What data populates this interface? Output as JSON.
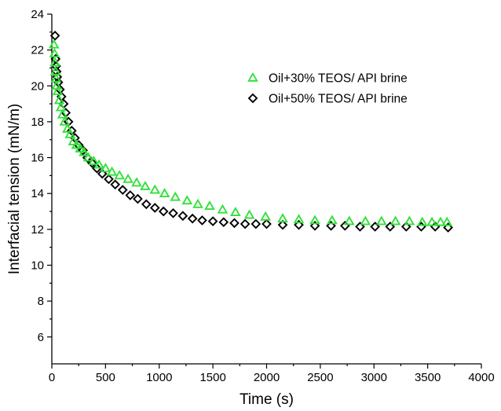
{
  "chart_data": {
    "type": "scatter",
    "title": "",
    "xlabel": "Time (s)",
    "ylabel": "Interfacial tension (mN/m)",
    "xlim": [
      0,
      4000
    ],
    "ylim": [
      4.5,
      24
    ],
    "x_ticks": [
      0,
      500,
      1000,
      1500,
      2000,
      2500,
      3000,
      3500,
      4000
    ],
    "x_tick_labels": [
      "0",
      "500",
      "1000",
      "1500",
      "2000",
      "2500",
      "3000",
      "3500",
      "4000"
    ],
    "y_ticks": [
      6,
      8,
      10,
      12,
      14,
      16,
      18,
      20,
      22,
      24
    ],
    "y_tick_labels": [
      "6",
      "8",
      "10",
      "12",
      "14",
      "16",
      "18",
      "20",
      "22",
      "24"
    ],
    "grid": false,
    "legend_position": "top-right",
    "series": [
      {
        "name": "Oil+30% TEOS/ API brine",
        "marker": "triangle",
        "color": "#33e03a",
        "points": [
          [
            20,
            22.3
          ],
          [
            25,
            21.8
          ],
          [
            30,
            21.3
          ],
          [
            35,
            20.8
          ],
          [
            40,
            20.4
          ],
          [
            45,
            20.0
          ],
          [
            55,
            19.7
          ],
          [
            70,
            19.2
          ],
          [
            85,
            18.8
          ],
          [
            100,
            18.4
          ],
          [
            120,
            18.0
          ],
          [
            145,
            17.6
          ],
          [
            170,
            17.3
          ],
          [
            200,
            16.9
          ],
          [
            230,
            16.7
          ],
          [
            265,
            16.5
          ],
          [
            300,
            16.3
          ],
          [
            340,
            16.0
          ],
          [
            390,
            15.8
          ],
          [
            440,
            15.6
          ],
          [
            500,
            15.4
          ],
          [
            560,
            15.2
          ],
          [
            630,
            15.0
          ],
          [
            710,
            14.8
          ],
          [
            790,
            14.6
          ],
          [
            870,
            14.4
          ],
          [
            960,
            14.2
          ],
          [
            1050,
            14.0
          ],
          [
            1150,
            13.8
          ],
          [
            1260,
            13.6
          ],
          [
            1360,
            13.4
          ],
          [
            1470,
            13.3
          ],
          [
            1590,
            13.1
          ],
          [
            1710,
            12.95
          ],
          [
            1840,
            12.8
          ],
          [
            1990,
            12.7
          ],
          [
            2150,
            12.6
          ],
          [
            2300,
            12.55
          ],
          [
            2450,
            12.5
          ],
          [
            2610,
            12.5
          ],
          [
            2770,
            12.45
          ],
          [
            2920,
            12.45
          ],
          [
            3070,
            12.45
          ],
          [
            3200,
            12.45
          ],
          [
            3330,
            12.45
          ],
          [
            3450,
            12.4
          ],
          [
            3540,
            12.4
          ],
          [
            3620,
            12.4
          ],
          [
            3680,
            12.4
          ]
        ]
      },
      {
        "name": "Oil+50% TEOS/ API brine",
        "marker": "diamond",
        "color": "#000000",
        "points": [
          [
            30,
            22.8
          ],
          [
            35,
            21.5
          ],
          [
            40,
            21.1
          ],
          [
            45,
            20.8
          ],
          [
            50,
            20.5
          ],
          [
            60,
            20.2
          ],
          [
            75,
            19.8
          ],
          [
            90,
            19.4
          ],
          [
            110,
            19.0
          ],
          [
            130,
            18.5
          ],
          [
            155,
            18.0
          ],
          [
            185,
            17.5
          ],
          [
            215,
            17.1
          ],
          [
            250,
            16.7
          ],
          [
            290,
            16.4
          ],
          [
            330,
            16.0
          ],
          [
            375,
            15.7
          ],
          [
            420,
            15.4
          ],
          [
            470,
            15.1
          ],
          [
            530,
            14.8
          ],
          [
            590,
            14.5
          ],
          [
            660,
            14.2
          ],
          [
            730,
            13.9
          ],
          [
            800,
            13.7
          ],
          [
            880,
            13.4
          ],
          [
            960,
            13.2
          ],
          [
            1040,
            13.0
          ],
          [
            1130,
            12.9
          ],
          [
            1220,
            12.75
          ],
          [
            1310,
            12.6
          ],
          [
            1400,
            12.5
          ],
          [
            1500,
            12.45
          ],
          [
            1600,
            12.4
          ],
          [
            1700,
            12.35
          ],
          [
            1800,
            12.3
          ],
          [
            1900,
            12.3
          ],
          [
            2000,
            12.3
          ],
          [
            2150,
            12.25
          ],
          [
            2300,
            12.25
          ],
          [
            2450,
            12.2
          ],
          [
            2600,
            12.2
          ],
          [
            2730,
            12.2
          ],
          [
            2870,
            12.15
          ],
          [
            3010,
            12.15
          ],
          [
            3150,
            12.15
          ],
          [
            3300,
            12.15
          ],
          [
            3440,
            12.15
          ],
          [
            3570,
            12.15
          ],
          [
            3690,
            12.1
          ]
        ]
      }
    ]
  }
}
